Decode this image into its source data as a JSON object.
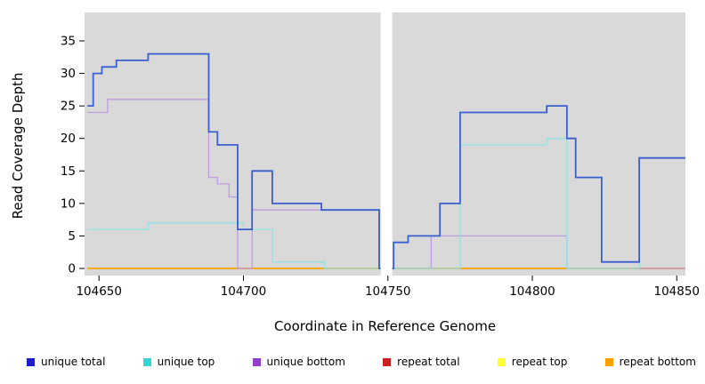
{
  "figure": {
    "background": "#ffffff",
    "panel_color": "#d9d9d9"
  },
  "chart_data": {
    "type": "line",
    "style": "step",
    "title": "",
    "xlabel": "Coordinate in Reference Genome",
    "ylabel": "Read Coverage Depth",
    "xlim": [
      104645,
      104853
    ],
    "ylim": [
      0,
      35
    ],
    "x_ticks": [
      "104650",
      "104700",
      "104750",
      "104800",
      "104850"
    ],
    "y_ticks": [
      "0",
      "5",
      "10",
      "15",
      "20",
      "25",
      "30",
      "35"
    ],
    "grid": false,
    "legend_position": "bottom",
    "gap_region": {
      "from": 104747.5,
      "to": 104751.5
    },
    "series": [
      {
        "name": "repeat total",
        "color": "#cc0000",
        "width": 1.2,
        "points": [
          [
            104646,
            0
          ],
          [
            104853,
            0
          ]
        ]
      },
      {
        "name": "repeat top",
        "color": "#ffff00",
        "width": 1.2,
        "points": [
          [
            104646,
            0
          ],
          [
            104853,
            0
          ]
        ]
      },
      {
        "name": "repeat bottom",
        "color": "#ffa500",
        "width": 1.4,
        "points": [
          [
            104646,
            0
          ],
          [
            104853,
            0
          ]
        ]
      },
      {
        "name": "unique bottom",
        "color": "#bf9be0",
        "width": 1.3,
        "points": [
          [
            104646,
            24
          ],
          [
            104653,
            26
          ],
          [
            104688,
            14
          ],
          [
            104691,
            13
          ],
          [
            104695,
            11
          ],
          [
            104698,
            0
          ],
          [
            104703,
            9
          ],
          [
            104747,
            0
          ],
          [
            104765,
            5
          ],
          [
            104812,
            0
          ],
          [
            104853,
            0
          ]
        ]
      },
      {
        "name": "unique top",
        "color": "#8fe2e6",
        "width": 1.3,
        "points": [
          [
            104646,
            6
          ],
          [
            104667,
            7
          ],
          [
            104700,
            6
          ],
          [
            104710,
            1
          ],
          [
            104728,
            0
          ],
          [
            104748,
            0
          ],
          [
            104775,
            19
          ],
          [
            104805,
            20
          ],
          [
            104812,
            0
          ],
          [
            104837,
            17
          ],
          [
            104853,
            17
          ]
        ]
      },
      {
        "name": "unique total",
        "color": "#3a5fd0",
        "width": 1.8,
        "points": [
          [
            104646,
            25
          ],
          [
            104648,
            30
          ],
          [
            104651,
            31
          ],
          [
            104656,
            32
          ],
          [
            104667,
            33
          ],
          [
            104688,
            21
          ],
          [
            104691,
            19
          ],
          [
            104698,
            6
          ],
          [
            104703,
            15
          ],
          [
            104710,
            10
          ],
          [
            104727,
            9
          ],
          [
            104747,
            0
          ],
          [
            104752,
            4
          ],
          [
            104757,
            5
          ],
          [
            104768,
            10
          ],
          [
            104775,
            24
          ],
          [
            104805,
            25
          ],
          [
            104812,
            20
          ],
          [
            104815,
            14
          ],
          [
            104824,
            1
          ],
          [
            104837,
            17
          ],
          [
            104853,
            17
          ]
        ]
      }
    ],
    "legend": [
      {
        "label": "unique total",
        "color": "#1c1ccd"
      },
      {
        "label": "unique top",
        "color": "#35d6d6"
      },
      {
        "label": "unique bottom",
        "color": "#9340cc"
      },
      {
        "label": "repeat total",
        "color": "#cc2020"
      },
      {
        "label": "repeat top",
        "color": "#ffff33"
      },
      {
        "label": "repeat bottom",
        "color": "#ffa200"
      }
    ]
  }
}
